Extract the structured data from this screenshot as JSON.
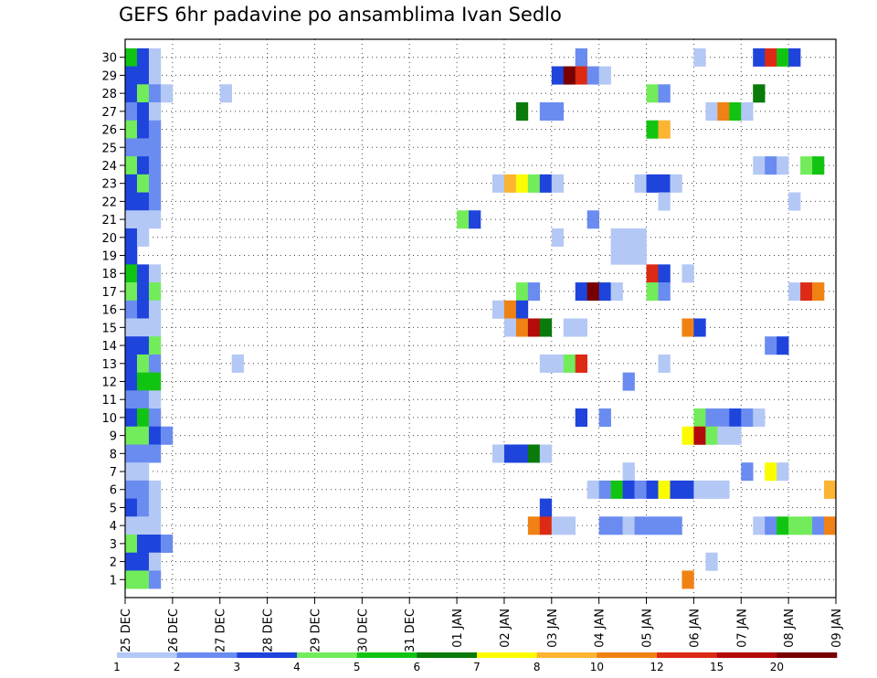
{
  "title": "GEFS 6hr padavine po ansamblima Ivan Sedlo",
  "chart_data": {
    "type": "heatmap",
    "title": "GEFS 6hr padavine po ansamblima Ivan Sedlo",
    "x_axis": {
      "unit": "6h steps",
      "tick_labels": [
        "25 DEC",
        "26 DEC",
        "27 DEC",
        "28 DEC",
        "29 DEC",
        "30 DEC",
        "31 DEC",
        "01 JAN",
        "02 JAN",
        "03 JAN",
        "04 JAN",
        "05 JAN",
        "06 JAN",
        "07 JAN",
        "08 JAN",
        "09 JAN"
      ],
      "grid": true
    },
    "y_axis": {
      "label": "",
      "tick_labels": [
        "1",
        "2",
        "3",
        "4",
        "5",
        "6",
        "7",
        "8",
        "9",
        "10",
        "11",
        "12",
        "13",
        "14",
        "15",
        "16",
        "17",
        "18",
        "19",
        "20",
        "21",
        "22",
        "23",
        "24",
        "25",
        "26",
        "27",
        "28",
        "29",
        "30"
      ],
      "grid": true
    },
    "colorbar": {
      "labels": [
        "1",
        "2",
        "3",
        "4",
        "5",
        "6",
        "7",
        "8",
        "10",
        "12",
        "15",
        "20"
      ],
      "colors": [
        "#b4c8f5",
        "#6a8cf0",
        "#1e44dc",
        "#72ec5a",
        "#12c412",
        "#0a7a0a",
        "#fcfc00",
        "#fcb432",
        "#f08214",
        "#dc2a14",
        "#b40a0a",
        "#780000"
      ]
    },
    "cells": [
      {
        "member": 30,
        "step": 0,
        "level": 5
      },
      {
        "member": 30,
        "step": 1,
        "level": 3
      },
      {
        "member": 30,
        "step": 2,
        "level": 1
      },
      {
        "member": 30,
        "step": 38,
        "level": 2
      },
      {
        "member": 30,
        "step": 48,
        "level": 1
      },
      {
        "member": 30,
        "step": 53,
        "level": 3
      },
      {
        "member": 30,
        "step": 54,
        "level": 10
      },
      {
        "member": 30,
        "step": 55,
        "level": 5
      },
      {
        "member": 30,
        "step": 56,
        "level": 3
      },
      {
        "member": 29,
        "step": 0,
        "level": 3
      },
      {
        "member": 29,
        "step": 1,
        "level": 3
      },
      {
        "member": 29,
        "step": 2,
        "level": 1
      },
      {
        "member": 29,
        "step": 36,
        "level": 3
      },
      {
        "member": 29,
        "step": 37,
        "level": 12
      },
      {
        "member": 29,
        "step": 38,
        "level": 10
      },
      {
        "member": 29,
        "step": 39,
        "level": 2
      },
      {
        "member": 29,
        "step": 40,
        "level": 1
      },
      {
        "member": 28,
        "step": 0,
        "level": 3
      },
      {
        "member": 28,
        "step": 1,
        "level": 4
      },
      {
        "member": 28,
        "step": 2,
        "level": 2
      },
      {
        "member": 28,
        "step": 3,
        "level": 1
      },
      {
        "member": 28,
        "step": 8,
        "level": 1
      },
      {
        "member": 28,
        "step": 44,
        "level": 4
      },
      {
        "member": 28,
        "step": 45,
        "level": 2
      },
      {
        "member": 28,
        "step": 53,
        "level": 6
      },
      {
        "member": 27,
        "step": 0,
        "level": 2
      },
      {
        "member": 27,
        "step": 1,
        "level": 3
      },
      {
        "member": 27,
        "step": 2,
        "level": 1
      },
      {
        "member": 27,
        "step": 33,
        "level": 6
      },
      {
        "member": 27,
        "step": 35,
        "level": 2
      },
      {
        "member": 27,
        "step": 36,
        "level": 2
      },
      {
        "member": 27,
        "step": 49,
        "level": 1
      },
      {
        "member": 27,
        "step": 50,
        "level": 9
      },
      {
        "member": 27,
        "step": 51,
        "level": 5
      },
      {
        "member": 27,
        "step": 52,
        "level": 1
      },
      {
        "member": 26,
        "step": 0,
        "level": 4
      },
      {
        "member": 26,
        "step": 1,
        "level": 3
      },
      {
        "member": 26,
        "step": 2,
        "level": 2
      },
      {
        "member": 26,
        "step": 44,
        "level": 5
      },
      {
        "member": 26,
        "step": 45,
        "level": 8
      },
      {
        "member": 25,
        "step": 0,
        "level": 2
      },
      {
        "member": 25,
        "step": 1,
        "level": 2
      },
      {
        "member": 25,
        "step": 2,
        "level": 2
      },
      {
        "member": 24,
        "step": 0,
        "level": 4
      },
      {
        "member": 24,
        "step": 1,
        "level": 3
      },
      {
        "member": 24,
        "step": 2,
        "level": 2
      },
      {
        "member": 24,
        "step": 53,
        "level": 1
      },
      {
        "member": 24,
        "step": 54,
        "level": 2
      },
      {
        "member": 24,
        "step": 55,
        "level": 1
      },
      {
        "member": 24,
        "step": 57,
        "level": 4
      },
      {
        "member": 24,
        "step": 58,
        "level": 5
      },
      {
        "member": 23,
        "step": 0,
        "level": 3
      },
      {
        "member": 23,
        "step": 1,
        "level": 4
      },
      {
        "member": 23,
        "step": 2,
        "level": 2
      },
      {
        "member": 23,
        "step": 31,
        "level": 1
      },
      {
        "member": 23,
        "step": 32,
        "level": 8
      },
      {
        "member": 23,
        "step": 33,
        "level": 7
      },
      {
        "member": 23,
        "step": 34,
        "level": 4
      },
      {
        "member": 23,
        "step": 35,
        "level": 3
      },
      {
        "member": 23,
        "step": 36,
        "level": 1
      },
      {
        "member": 23,
        "step": 43,
        "level": 1
      },
      {
        "member": 23,
        "step": 44,
        "level": 3
      },
      {
        "member": 23,
        "step": 45,
        "level": 3
      },
      {
        "member": 23,
        "step": 46,
        "level": 1
      },
      {
        "member": 22,
        "step": 0,
        "level": 3
      },
      {
        "member": 22,
        "step": 1,
        "level": 3
      },
      {
        "member": 22,
        "step": 2,
        "level": 2
      },
      {
        "member": 22,
        "step": 45,
        "level": 1
      },
      {
        "member": 22,
        "step": 56,
        "level": 1
      },
      {
        "member": 21,
        "step": 0,
        "level": 1
      },
      {
        "member": 21,
        "step": 1,
        "level": 1
      },
      {
        "member": 21,
        "step": 2,
        "level": 1
      },
      {
        "member": 21,
        "step": 28,
        "level": 4
      },
      {
        "member": 21,
        "step": 29,
        "level": 3
      },
      {
        "member": 21,
        "step": 39,
        "level": 2
      },
      {
        "member": 20,
        "step": 0,
        "level": 3
      },
      {
        "member": 20,
        "step": 1,
        "level": 1
      },
      {
        "member": 20,
        "step": 36,
        "level": 1
      },
      {
        "member": 20,
        "step": 41,
        "level": 1
      },
      {
        "member": 20,
        "step": 42,
        "level": 1
      },
      {
        "member": 20,
        "step": 43,
        "level": 1
      },
      {
        "member": 19,
        "step": 0,
        "level": 3
      },
      {
        "member": 19,
        "step": 41,
        "level": 1
      },
      {
        "member": 19,
        "step": 42,
        "level": 1
      },
      {
        "member": 19,
        "step": 43,
        "level": 1
      },
      {
        "member": 18,
        "step": 0,
        "level": 5
      },
      {
        "member": 18,
        "step": 1,
        "level": 3
      },
      {
        "member": 18,
        "step": 2,
        "level": 1
      },
      {
        "member": 18,
        "step": 44,
        "level": 10
      },
      {
        "member": 18,
        "step": 45,
        "level": 3
      },
      {
        "member": 18,
        "step": 47,
        "level": 1
      },
      {
        "member": 17,
        "step": 0,
        "level": 4
      },
      {
        "member": 17,
        "step": 1,
        "level": 3
      },
      {
        "member": 17,
        "step": 2,
        "level": 4
      },
      {
        "member": 17,
        "step": 33,
        "level": 4
      },
      {
        "member": 17,
        "step": 34,
        "level": 2
      },
      {
        "member": 17,
        "step": 38,
        "level": 3
      },
      {
        "member": 17,
        "step": 39,
        "level": 12
      },
      {
        "member": 17,
        "step": 40,
        "level": 3
      },
      {
        "member": 17,
        "step": 41,
        "level": 1
      },
      {
        "member": 17,
        "step": 44,
        "level": 4
      },
      {
        "member": 17,
        "step": 45,
        "level": 2
      },
      {
        "member": 17,
        "step": 56,
        "level": 1
      },
      {
        "member": 17,
        "step": 57,
        "level": 10
      },
      {
        "member": 17,
        "step": 58,
        "level": 9
      },
      {
        "member": 16,
        "step": 0,
        "level": 2
      },
      {
        "member": 16,
        "step": 1,
        "level": 3
      },
      {
        "member": 16,
        "step": 2,
        "level": 1
      },
      {
        "member": 16,
        "step": 31,
        "level": 1
      },
      {
        "member": 16,
        "step": 32,
        "level": 9
      },
      {
        "member": 16,
        "step": 33,
        "level": 3
      },
      {
        "member": 15,
        "step": 0,
        "level": 1
      },
      {
        "member": 15,
        "step": 1,
        "level": 1
      },
      {
        "member": 15,
        "step": 2,
        "level": 1
      },
      {
        "member": 15,
        "step": 32,
        "level": 1
      },
      {
        "member": 15,
        "step": 33,
        "level": 9
      },
      {
        "member": 15,
        "step": 34,
        "level": 11
      },
      {
        "member": 15,
        "step": 35,
        "level": 6
      },
      {
        "member": 15,
        "step": 37,
        "level": 1
      },
      {
        "member": 15,
        "step": 38,
        "level": 1
      },
      {
        "member": 15,
        "step": 47,
        "level": 9
      },
      {
        "member": 15,
        "step": 48,
        "level": 3
      },
      {
        "member": 14,
        "step": 0,
        "level": 3
      },
      {
        "member": 14,
        "step": 1,
        "level": 3
      },
      {
        "member": 14,
        "step": 2,
        "level": 4
      },
      {
        "member": 14,
        "step": 54,
        "level": 2
      },
      {
        "member": 14,
        "step": 55,
        "level": 3
      },
      {
        "member": 13,
        "step": 0,
        "level": 3
      },
      {
        "member": 13,
        "step": 1,
        "level": 4
      },
      {
        "member": 13,
        "step": 2,
        "level": 2
      },
      {
        "member": 13,
        "step": 9,
        "level": 1
      },
      {
        "member": 13,
        "step": 35,
        "level": 1
      },
      {
        "member": 13,
        "step": 36,
        "level": 1
      },
      {
        "member": 13,
        "step": 37,
        "level": 4
      },
      {
        "member": 13,
        "step": 38,
        "level": 10
      },
      {
        "member": 13,
        "step": 45,
        "level": 1
      },
      {
        "member": 12,
        "step": 0,
        "level": 3
      },
      {
        "member": 12,
        "step": 1,
        "level": 5
      },
      {
        "member": 12,
        "step": 2,
        "level": 5
      },
      {
        "member": 12,
        "step": 42,
        "level": 2
      },
      {
        "member": 11,
        "step": 0,
        "level": 2
      },
      {
        "member": 11,
        "step": 1,
        "level": 2
      },
      {
        "member": 11,
        "step": 2,
        "level": 1
      },
      {
        "member": 10,
        "step": 0,
        "level": 3
      },
      {
        "member": 10,
        "step": 1,
        "level": 5
      },
      {
        "member": 10,
        "step": 2,
        "level": 2
      },
      {
        "member": 10,
        "step": 38,
        "level": 3
      },
      {
        "member": 10,
        "step": 40,
        "level": 2
      },
      {
        "member": 10,
        "step": 48,
        "level": 4
      },
      {
        "member": 10,
        "step": 49,
        "level": 2
      },
      {
        "member": 10,
        "step": 50,
        "level": 2
      },
      {
        "member": 10,
        "step": 51,
        "level": 3
      },
      {
        "member": 10,
        "step": 52,
        "level": 2
      },
      {
        "member": 10,
        "step": 53,
        "level": 1
      },
      {
        "member": 9,
        "step": 0,
        "level": 4
      },
      {
        "member": 9,
        "step": 1,
        "level": 4
      },
      {
        "member": 9,
        "step": 2,
        "level": 3
      },
      {
        "member": 9,
        "step": 3,
        "level": 2
      },
      {
        "member": 9,
        "step": 47,
        "level": 7
      },
      {
        "member": 9,
        "step": 48,
        "level": 11
      },
      {
        "member": 9,
        "step": 49,
        "level": 4
      },
      {
        "member": 9,
        "step": 50,
        "level": 1
      },
      {
        "member": 9,
        "step": 51,
        "level": 1
      },
      {
        "member": 8,
        "step": 0,
        "level": 2
      },
      {
        "member": 8,
        "step": 1,
        "level": 2
      },
      {
        "member": 8,
        "step": 2,
        "level": 2
      },
      {
        "member": 8,
        "step": 31,
        "level": 1
      },
      {
        "member": 8,
        "step": 32,
        "level": 3
      },
      {
        "member": 8,
        "step": 33,
        "level": 3
      },
      {
        "member": 8,
        "step": 34,
        "level": 6
      },
      {
        "member": 8,
        "step": 35,
        "level": 1
      },
      {
        "member": 7,
        "step": 0,
        "level": 1
      },
      {
        "member": 7,
        "step": 1,
        "level": 1
      },
      {
        "member": 7,
        "step": 42,
        "level": 1
      },
      {
        "member": 7,
        "step": 52,
        "level": 2
      },
      {
        "member": 7,
        "step": 54,
        "level": 7
      },
      {
        "member": 7,
        "step": 55,
        "level": 1
      },
      {
        "member": 6,
        "step": 0,
        "level": 2
      },
      {
        "member": 6,
        "step": 1,
        "level": 2
      },
      {
        "member": 6,
        "step": 2,
        "level": 1
      },
      {
        "member": 6,
        "step": 39,
        "level": 1
      },
      {
        "member": 6,
        "step": 40,
        "level": 2
      },
      {
        "member": 6,
        "step": 41,
        "level": 5
      },
      {
        "member": 6,
        "step": 42,
        "level": 3
      },
      {
        "member": 6,
        "step": 43,
        "level": 2
      },
      {
        "member": 6,
        "step": 44,
        "level": 3
      },
      {
        "member": 6,
        "step": 45,
        "level": 7
      },
      {
        "member": 6,
        "step": 46,
        "level": 3
      },
      {
        "member": 6,
        "step": 47,
        "level": 3
      },
      {
        "member": 6,
        "step": 48,
        "level": 1
      },
      {
        "member": 6,
        "step": 49,
        "level": 1
      },
      {
        "member": 6,
        "step": 50,
        "level": 1
      },
      {
        "member": 6,
        "step": 59,
        "level": 8
      },
      {
        "member": 5,
        "step": 0,
        "level": 3
      },
      {
        "member": 5,
        "step": 1,
        "level": 2
      },
      {
        "member": 5,
        "step": 2,
        "level": 1
      },
      {
        "member": 5,
        "step": 35,
        "level": 3
      },
      {
        "member": 4,
        "step": 0,
        "level": 1
      },
      {
        "member": 4,
        "step": 1,
        "level": 1
      },
      {
        "member": 4,
        "step": 2,
        "level": 1
      },
      {
        "member": 4,
        "step": 34,
        "level": 9
      },
      {
        "member": 4,
        "step": 35,
        "level": 10
      },
      {
        "member": 4,
        "step": 36,
        "level": 1
      },
      {
        "member": 4,
        "step": 37,
        "level": 1
      },
      {
        "member": 4,
        "step": 40,
        "level": 2
      },
      {
        "member": 4,
        "step": 41,
        "level": 2
      },
      {
        "member": 4,
        "step": 42,
        "level": 1
      },
      {
        "member": 4,
        "step": 43,
        "level": 2
      },
      {
        "member": 4,
        "step": 44,
        "level": 2
      },
      {
        "member": 4,
        "step": 45,
        "level": 2
      },
      {
        "member": 4,
        "step": 46,
        "level": 2
      },
      {
        "member": 4,
        "step": 53,
        "level": 1
      },
      {
        "member": 4,
        "step": 54,
        "level": 2
      },
      {
        "member": 4,
        "step": 55,
        "level": 5
      },
      {
        "member": 4,
        "step": 56,
        "level": 4
      },
      {
        "member": 4,
        "step": 57,
        "level": 4
      },
      {
        "member": 4,
        "step": 58,
        "level": 2
      },
      {
        "member": 4,
        "step": 59,
        "level": 9
      },
      {
        "member": 3,
        "step": 0,
        "level": 4
      },
      {
        "member": 3,
        "step": 1,
        "level": 3
      },
      {
        "member": 3,
        "step": 2,
        "level": 3
      },
      {
        "member": 3,
        "step": 3,
        "level": 2
      },
      {
        "member": 2,
        "step": 0,
        "level": 3
      },
      {
        "member": 2,
        "step": 1,
        "level": 3
      },
      {
        "member": 2,
        "step": 2,
        "level": 1
      },
      {
        "member": 2,
        "step": 49,
        "level": 1
      },
      {
        "member": 1,
        "step": 0,
        "level": 4
      },
      {
        "member": 1,
        "step": 1,
        "level": 4
      },
      {
        "member": 1,
        "step": 2,
        "level": 2
      },
      {
        "member": 1,
        "step": 47,
        "level": 9
      }
    ]
  }
}
